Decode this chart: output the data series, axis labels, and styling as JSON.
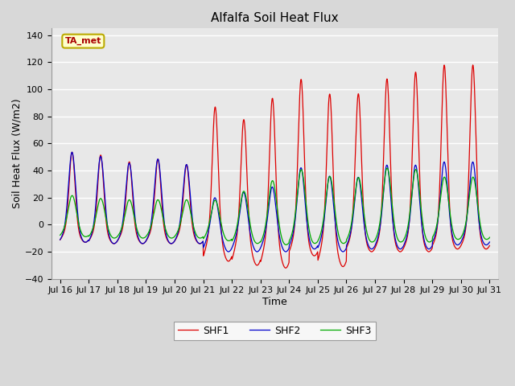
{
  "title": "Alfalfa Soil Heat Flux",
  "xlabel": "Time",
  "ylabel": "Soil Heat Flux (W/m2)",
  "ylim": [
    -40,
    145
  ],
  "yticks": [
    -40,
    -20,
    0,
    20,
    40,
    60,
    80,
    100,
    120,
    140
  ],
  "background_color": "#d8d8d8",
  "plot_bg_color": "#e8e8e8",
  "shf1_color": "#dd0000",
  "shf2_color": "#0000cc",
  "shf3_color": "#00aa00",
  "annotation_text": "TA_met",
  "annotation_bg": "#ffffcc",
  "annotation_border": "#bbaa00",
  "day_peaks_shf1": [
    55,
    53,
    48,
    50,
    46,
    90,
    81,
    97,
    110,
    100,
    99,
    110,
    115,
    120
  ],
  "day_peaks_shf2": [
    55,
    52,
    47,
    50,
    46,
    22,
    26,
    30,
    44,
    38,
    37,
    46,
    46,
    48
  ],
  "day_peaks_shf3": [
    23,
    21,
    20,
    20,
    20,
    20,
    27,
    35,
    43,
    38,
    37,
    44,
    43,
    37
  ],
  "day_troughs_shf1": [
    -13,
    -14,
    -14,
    -14,
    -14,
    -27,
    -30,
    -32,
    -23,
    -31,
    -20,
    -20,
    -20,
    -18
  ],
  "day_troughs_shf2": [
    -13,
    -14,
    -14,
    -14,
    -14,
    -20,
    -20,
    -20,
    -18,
    -20,
    -18,
    -18,
    -18,
    -15
  ],
  "day_troughs_shf3": [
    -9,
    -10,
    -10,
    -10,
    -10,
    -12,
    -14,
    -15,
    -14,
    -14,
    -13,
    -13,
    -13,
    -11
  ]
}
